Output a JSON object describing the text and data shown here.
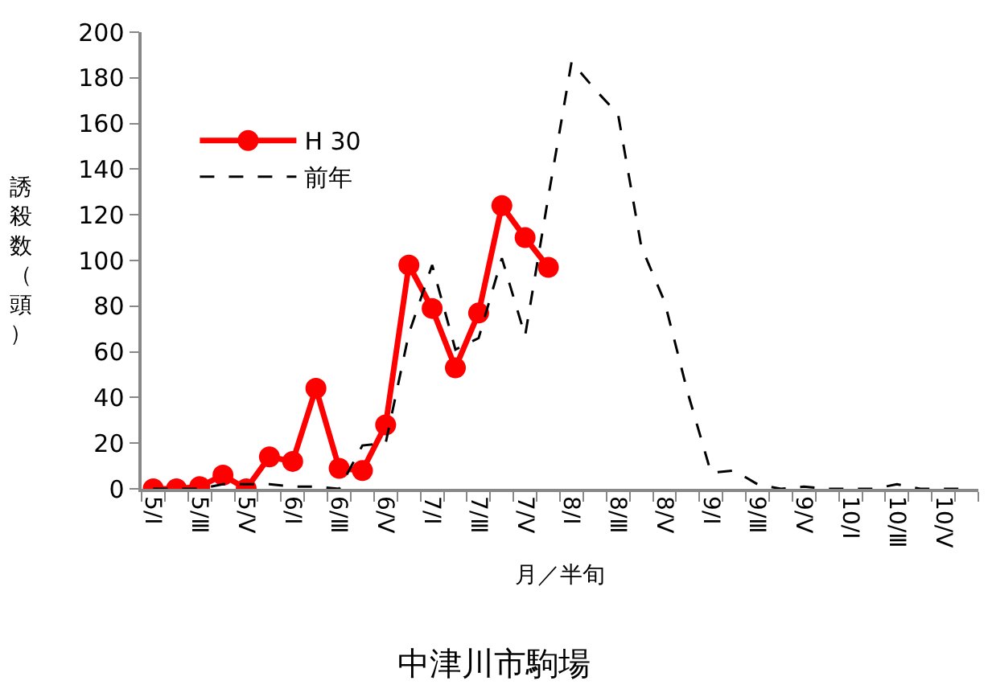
{
  "chart_data": {
    "type": "line",
    "title": "中津川市駒場",
    "xlabel": "月／半旬",
    "ylabel": "誘殺数（頭）",
    "categories": [
      "5/Ⅰ",
      null,
      "5/Ⅲ",
      null,
      "5/Ⅴ",
      null,
      "6/Ⅰ",
      null,
      "6/Ⅲ",
      null,
      "6/Ⅴ",
      null,
      "7/Ⅰ",
      null,
      "7/Ⅲ",
      null,
      "7/Ⅴ",
      null,
      "8/Ⅰ",
      null,
      "8/Ⅲ",
      null,
      "8/Ⅴ",
      null,
      "9/Ⅰ",
      null,
      "9/Ⅲ",
      null,
      "9/Ⅴ",
      null,
      "10/Ⅰ",
      null,
      "10/Ⅲ",
      null,
      "10/Ⅴ",
      null
    ],
    "series": [
      {
        "name": "H 30",
        "color": "#ff0000",
        "marker": "circle",
        "line_style": "solid",
        "values": [
          0,
          0,
          1,
          6,
          0,
          14,
          12,
          44,
          9,
          8,
          28,
          98,
          79,
          53,
          77,
          124,
          110,
          97,
          null,
          null,
          null,
          null,
          null,
          null,
          null,
          null,
          null,
          null,
          null,
          null,
          null,
          null,
          null,
          null,
          null,
          null
        ]
      },
      {
        "name": "前年",
        "color": "#000000",
        "marker": "none",
        "line_style": "dashed",
        "values": [
          0,
          0,
          0,
          2,
          2,
          2,
          1,
          1,
          0,
          19,
          20,
          68,
          98,
          61,
          66,
          101,
          67,
          128,
          187,
          175,
          164,
          106,
          82,
          42,
          7,
          8,
          2,
          0,
          1,
          0,
          0,
          0,
          2,
          0,
          0,
          0
        ]
      }
    ],
    "ylim": [
      0,
      200
    ],
    "yticks": [
      0,
      20,
      40,
      60,
      80,
      100,
      120,
      140,
      160,
      180,
      200
    ],
    "legend": "top left"
  }
}
